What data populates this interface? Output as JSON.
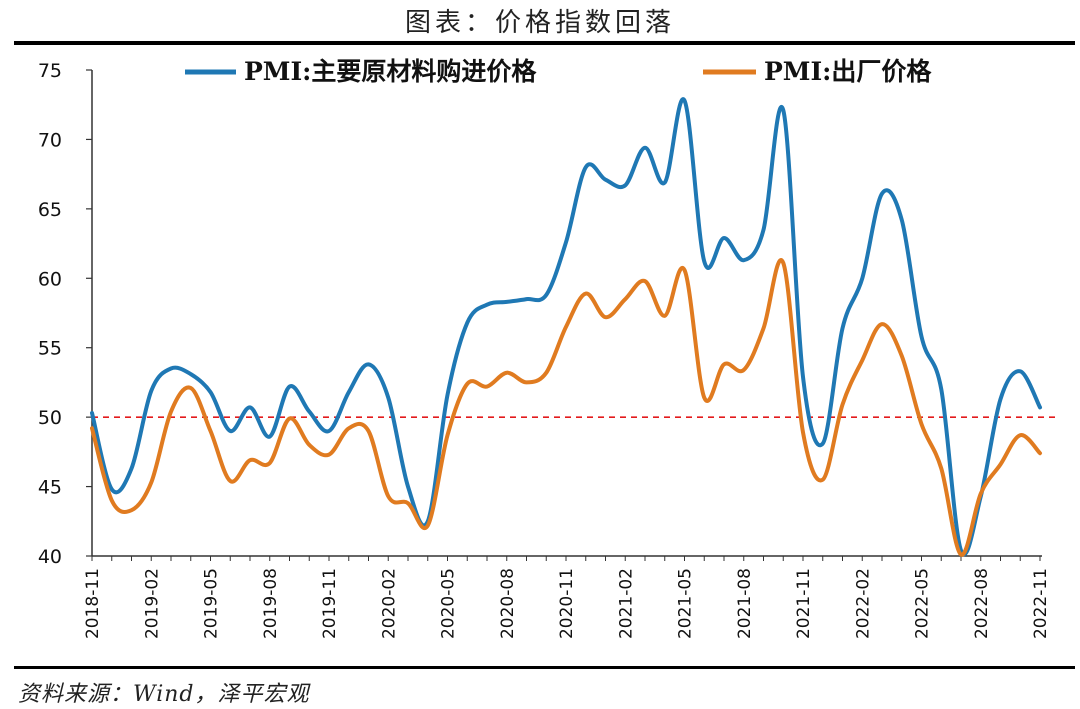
{
  "title": "图表：价格指数回落",
  "source": "资料来源：Wind，泽平宏观",
  "colors": {
    "series1": "#1f78b4",
    "series2": "#e07b20",
    "reference": "#e31a1c",
    "axis": "#333333"
  },
  "chart_data": {
    "type": "line",
    "title": "图表：价格指数回落",
    "xlabel": "",
    "ylabel": "",
    "ylim": [
      40,
      75
    ],
    "yticks": [
      40,
      45,
      50,
      55,
      60,
      65,
      70,
      75
    ],
    "grid": false,
    "legend_position": "top",
    "x": [
      "2018-11",
      "2018-12",
      "2019-01",
      "2019-02",
      "2019-03",
      "2019-04",
      "2019-05",
      "2019-06",
      "2019-07",
      "2019-08",
      "2019-09",
      "2019-10",
      "2019-11",
      "2019-12",
      "2020-01",
      "2020-02",
      "2020-03",
      "2020-04",
      "2020-05",
      "2020-06",
      "2020-07",
      "2020-08",
      "2020-09",
      "2020-10",
      "2020-11",
      "2020-12",
      "2021-01",
      "2021-02",
      "2021-03",
      "2021-04",
      "2021-05",
      "2021-06",
      "2021-07",
      "2021-08",
      "2021-09",
      "2021-10",
      "2021-11",
      "2021-12",
      "2022-01",
      "2022-02",
      "2022-03",
      "2022-04",
      "2022-05",
      "2022-06",
      "2022-07",
      "2022-08",
      "2022-09",
      "2022-10",
      "2022-11"
    ],
    "xtick_labels": [
      "2018-11",
      "2019-02",
      "2019-05",
      "2019-08",
      "2019-11",
      "2020-02",
      "2020-05",
      "2020-08",
      "2020-11",
      "2021-02",
      "2021-05",
      "2021-08",
      "2021-11",
      "2022-02",
      "2022-05",
      "2022-08",
      "2022-11"
    ],
    "series": [
      {
        "name": "PMI:主要原材料购进价格",
        "values": [
          50.3,
          44.8,
          46.3,
          51.9,
          53.5,
          53.1,
          51.8,
          49.0,
          50.7,
          48.6,
          52.2,
          50.4,
          49.0,
          51.8,
          53.8,
          51.4,
          45.0,
          42.5,
          51.6,
          56.8,
          58.1,
          58.3,
          58.5,
          58.8,
          62.6,
          68.0,
          67.1,
          66.7,
          69.4,
          66.9,
          72.8,
          61.2,
          62.9,
          61.3,
          63.5,
          72.1,
          52.9,
          48.1,
          56.4,
          60.0,
          66.1,
          64.2,
          55.8,
          52.0,
          40.4,
          44.3,
          51.3,
          53.3,
          50.7
        ]
      },
      {
        "name": "PMI:出厂价格",
        "values": [
          49.2,
          44.0,
          43.3,
          45.3,
          50.4,
          52.1,
          49.0,
          45.4,
          46.9,
          46.7,
          49.9,
          48.0,
          47.3,
          49.2,
          49.0,
          44.3,
          43.8,
          42.2,
          48.7,
          52.4,
          52.2,
          53.2,
          52.5,
          53.2,
          56.5,
          58.9,
          57.2,
          58.5,
          59.8,
          57.3,
          60.6,
          51.4,
          53.8,
          53.4,
          56.4,
          61.1,
          48.9,
          45.5,
          50.9,
          54.1,
          56.7,
          54.4,
          49.5,
          46.3,
          40.1,
          44.5,
          46.6,
          48.7,
          47.4
        ]
      }
    ],
    "reference_line": {
      "value": 50
    }
  }
}
